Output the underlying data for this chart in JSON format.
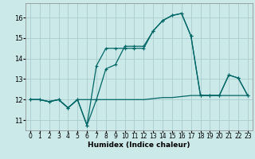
{
  "xlabel": "Humidex (Indice chaleur)",
  "bg_color": "#cce9e9",
  "grid_color": "#aacccc",
  "line_color": "#006666",
  "x": [
    0,
    1,
    2,
    3,
    4,
    5,
    6,
    7,
    8,
    9,
    10,
    11,
    12,
    13,
    14,
    15,
    16,
    17,
    18,
    19,
    20,
    21,
    22,
    23
  ],
  "series1_y": [
    12.0,
    12.0,
    11.9,
    12.0,
    11.6,
    12.0,
    12.0,
    12.0,
    12.0,
    12.0,
    12.0,
    12.0,
    12.0,
    12.05,
    12.1,
    12.1,
    12.15,
    12.2,
    12.2,
    12.2,
    12.2,
    12.2,
    12.2,
    12.2
  ],
  "series2_y": [
    12.0,
    12.0,
    11.9,
    12.0,
    11.6,
    12.0,
    10.75,
    12.0,
    13.5,
    13.7,
    14.6,
    14.6,
    14.6,
    15.35,
    15.85,
    16.1,
    16.2,
    15.1,
    12.2,
    12.2,
    12.2,
    13.2,
    13.05,
    12.2
  ],
  "series3_y": [
    12.0,
    12.0,
    11.9,
    12.0,
    11.6,
    12.0,
    10.75,
    13.65,
    14.5,
    14.5,
    14.5,
    14.5,
    14.5,
    15.35,
    15.85,
    16.1,
    16.2,
    15.1,
    12.2,
    12.2,
    12.2,
    13.2,
    13.05,
    12.2
  ],
  "ylim": [
    10.5,
    16.7
  ],
  "xlim": [
    -0.5,
    23.5
  ],
  "yticks": [
    11,
    12,
    13,
    14,
    15,
    16
  ],
  "xticks": [
    0,
    1,
    2,
    3,
    4,
    5,
    6,
    7,
    8,
    9,
    10,
    11,
    12,
    13,
    14,
    15,
    16,
    17,
    18,
    19,
    20,
    21,
    22,
    23
  ]
}
